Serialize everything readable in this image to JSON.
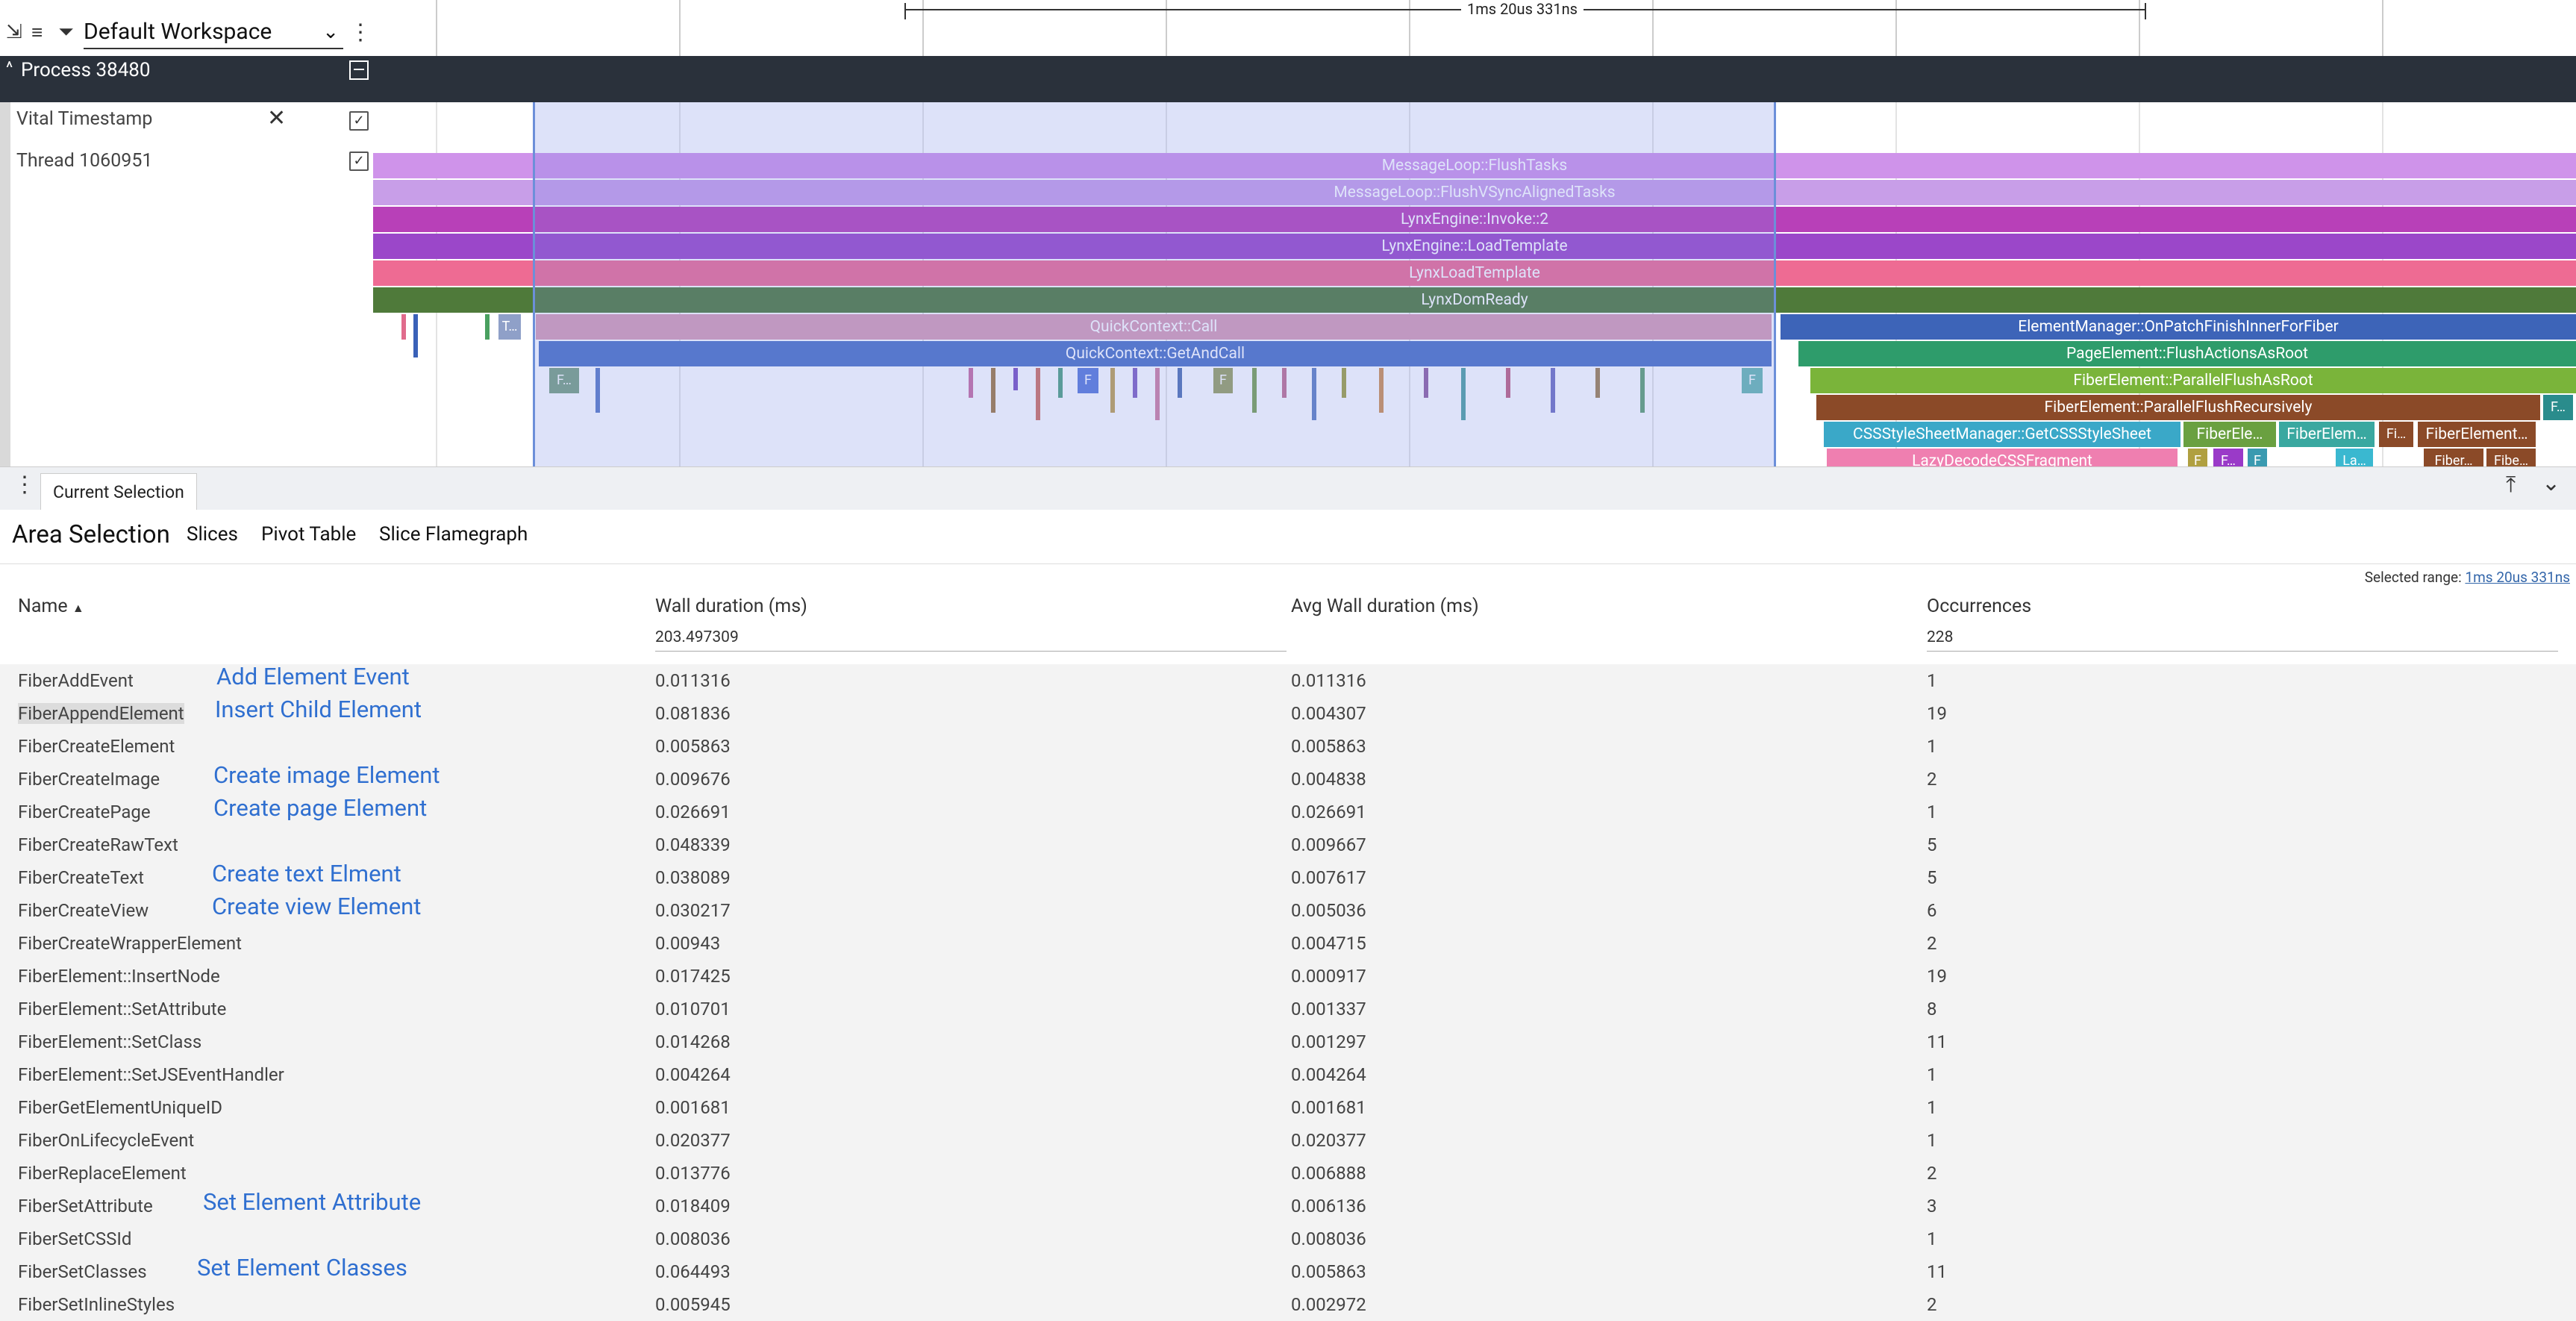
{
  "workspace": {
    "name": "Default Workspace"
  },
  "timeline": {
    "span_label": "1ms 20us 331ns"
  },
  "process": {
    "title": "Process 38480"
  },
  "tracks": {
    "vital": {
      "name": "Vital Timestamp"
    },
    "thread": {
      "name": "Thread 1060951"
    }
  },
  "slices": {
    "flush_tasks": "MessageLoop::FlushTasks",
    "flush_vsync": "MessageLoop::FlushVSyncAlignedTasks",
    "invoke": "LynxEngine::Invoke::2",
    "load_template": "LynxEngine::LoadTemplate",
    "lynx_load_template": "LynxLoadTemplate",
    "dom_ready": "LynxDomReady",
    "qc_call": "QuickContext::Call",
    "qc_get_and_call": "QuickContext::GetAndCall",
    "patch_finish": "ElementManager::OnPatchFinishInnerForFiber",
    "flush_actions": "PageElement::FlushActionsAsRoot",
    "parallel_flush_root": "FiberElement::ParallelFlushAsRoot",
    "parallel_flush_rec": "FiberElement::ParallelFlushRecursively",
    "get_css": "CSSStyleSheetManager::GetCSSStyleSheet",
    "lazy_decode": "LazyDecodeCSSFragment",
    "fiber_ele1": "FiberEle…",
    "fiber_elem2": "FiberElem…",
    "fi": "Fi…",
    "fiber_element3": "FiberElement…",
    "f_dot": "F…",
    "t_dot": "T…",
    "f": "F",
    "fiber_dot": "Fiber…",
    "fibe_dot": "Fibe…",
    "la_dot": "La…"
  },
  "panel": {
    "current_tab": "Current Selection",
    "area_title": "Area Selection",
    "tabs": [
      "Slices",
      "Pivot Table",
      "Slice Flamegraph"
    ],
    "selected_range_label": "Selected range:",
    "selected_range_value": "1ms 20us 331ns"
  },
  "table": {
    "headers": {
      "name": "Name",
      "wall": "Wall duration (ms)",
      "avg": "Avg Wall duration (ms)",
      "occ": "Occurrences"
    },
    "totals": {
      "wall": "203.497309",
      "occ": "228"
    },
    "rows": [
      {
        "name": "FiberAddEvent",
        "wall": "0.011316",
        "avg": "0.011316",
        "occ": "1",
        "note": "Add Element Event"
      },
      {
        "name": "FiberAppendElement",
        "wall": "0.081836",
        "avg": "0.004307",
        "occ": "19",
        "note": "Insert Child Element"
      },
      {
        "name": "FiberCreateElement",
        "wall": "0.005863",
        "avg": "0.005863",
        "occ": "1",
        "note": ""
      },
      {
        "name": "FiberCreateImage",
        "wall": "0.009676",
        "avg": "0.004838",
        "occ": "2",
        "note": "Create image Element"
      },
      {
        "name": "FiberCreatePage",
        "wall": "0.026691",
        "avg": "0.026691",
        "occ": "1",
        "note": "Create page Element"
      },
      {
        "name": "FiberCreateRawText",
        "wall": "0.048339",
        "avg": "0.009667",
        "occ": "5",
        "note": ""
      },
      {
        "name": "FiberCreateText",
        "wall": "0.038089",
        "avg": "0.007617",
        "occ": "5",
        "note": "Create text Elment"
      },
      {
        "name": "FiberCreateView",
        "wall": "0.030217",
        "avg": "0.005036",
        "occ": "6",
        "note": "Create view Element"
      },
      {
        "name": "FiberCreateWrapperElement",
        "wall": "0.00943",
        "avg": "0.004715",
        "occ": "2",
        "note": ""
      },
      {
        "name": "FiberElement::InsertNode",
        "wall": "0.017425",
        "avg": "0.000917",
        "occ": "19",
        "note": ""
      },
      {
        "name": "FiberElement::SetAttribute",
        "wall": "0.010701",
        "avg": "0.001337",
        "occ": "8",
        "note": ""
      },
      {
        "name": "FiberElement::SetClass",
        "wall": "0.014268",
        "avg": "0.001297",
        "occ": "11",
        "note": ""
      },
      {
        "name": "FiberElement::SetJSEventHandler",
        "wall": "0.004264",
        "avg": "0.004264",
        "occ": "1",
        "note": ""
      },
      {
        "name": "FiberGetElementUniqueID",
        "wall": "0.001681",
        "avg": "0.001681",
        "occ": "1",
        "note": ""
      },
      {
        "name": "FiberOnLifecycleEvent",
        "wall": "0.020377",
        "avg": "0.020377",
        "occ": "1",
        "note": ""
      },
      {
        "name": "FiberReplaceElement",
        "wall": "0.013776",
        "avg": "0.006888",
        "occ": "2",
        "note": ""
      },
      {
        "name": "FiberSetAttribute",
        "wall": "0.018409",
        "avg": "0.006136",
        "occ": "3",
        "note": "Set Element Attribute"
      },
      {
        "name": "FiberSetCSSId",
        "wall": "0.008036",
        "avg": "0.008036",
        "occ": "1",
        "note": ""
      },
      {
        "name": "FiberSetClasses",
        "wall": "0.064493",
        "avg": "0.005863",
        "occ": "11",
        "note": "Set Element Classes"
      },
      {
        "name": "FiberSetInlineStyles",
        "wall": "0.005945",
        "avg": "0.002972",
        "occ": "2",
        "note": ""
      }
    ]
  }
}
